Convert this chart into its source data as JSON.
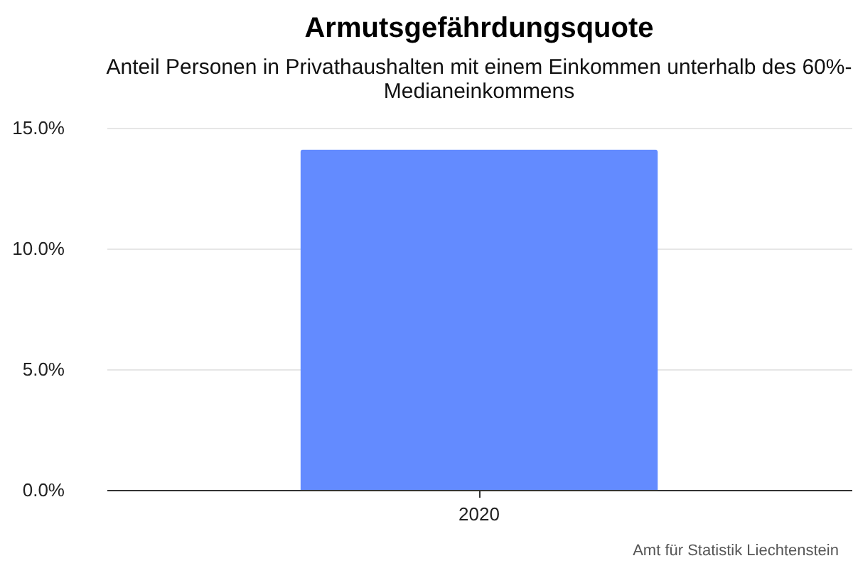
{
  "chart_data": {
    "type": "bar",
    "title": "Armutsgefährdungsquote",
    "subtitle": "Anteil Personen in Privathaushalten mit einem Einkommen unterhalb des 60%-Medianeinkommens",
    "categories": [
      "2020"
    ],
    "values": [
      14.1
    ],
    "color": "#638bff",
    "ylim": [
      0,
      15
    ],
    "yticks": [
      {
        "value": 0,
        "label": "0.0%"
      },
      {
        "value": 5,
        "label": "5.0%"
      },
      {
        "value": 10,
        "label": "10.0%"
      },
      {
        "value": 15,
        "label": "15.0%"
      }
    ],
    "grid": "y",
    "annotations": [
      "Amt für Statistik Liechtenstein"
    ]
  }
}
